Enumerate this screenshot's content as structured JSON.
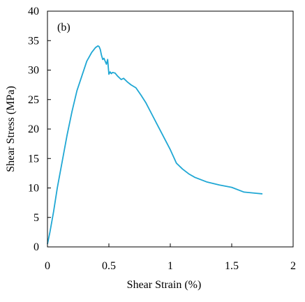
{
  "chart_data": {
    "type": "line",
    "panel_label": "(b)",
    "xlabel": "Shear Strain (%)",
    "ylabel": "Shear Stress (MPa)",
    "xlim": [
      0,
      2
    ],
    "ylim": [
      0,
      40
    ],
    "x_ticks": [
      0,
      0.5,
      1,
      1.5,
      2
    ],
    "x_tick_labels": [
      "0",
      "0.5",
      "1",
      "1.5",
      "2"
    ],
    "y_ticks": [
      0,
      5,
      10,
      15,
      20,
      25,
      30,
      35,
      40
    ],
    "y_tick_labels": [
      "0",
      "5",
      "10",
      "15",
      "20",
      "25",
      "30",
      "35",
      "40"
    ],
    "grid": false,
    "legend": "none",
    "line_color": "#1fa7d4",
    "series": [
      {
        "x": [
          0.0,
          0.02,
          0.05,
          0.08,
          0.12,
          0.16,
          0.2,
          0.24,
          0.28,
          0.32,
          0.36,
          0.39,
          0.41,
          0.42,
          0.43,
          0.44,
          0.45,
          0.46,
          0.47,
          0.48,
          0.49,
          0.5,
          0.51,
          0.52,
          0.53,
          0.55,
          0.57,
          0.6,
          0.62,
          0.65,
          0.68,
          0.72,
          0.76,
          0.8,
          0.85,
          0.9,
          0.95,
          1.0,
          1.05,
          1.1,
          1.15,
          1.2,
          1.3,
          1.4,
          1.5,
          1.6,
          1.7,
          1.75
        ],
        "y": [
          0.5,
          2.5,
          6,
          10,
          14.5,
          19,
          23,
          26.5,
          29,
          31.5,
          33,
          33.8,
          34.1,
          34.0,
          33.5,
          32.5,
          31.8,
          32.0,
          31.5,
          31.0,
          31.8,
          29.3,
          29.7,
          29.4,
          29.6,
          29.5,
          29.0,
          28.4,
          28.6,
          28.0,
          27.5,
          27.0,
          25.8,
          24.5,
          22.5,
          20.5,
          18.5,
          16.5,
          14.2,
          13.2,
          12.4,
          11.8,
          11.0,
          10.5,
          10.1,
          9.3,
          9.1,
          9.0
        ]
      }
    ]
  }
}
